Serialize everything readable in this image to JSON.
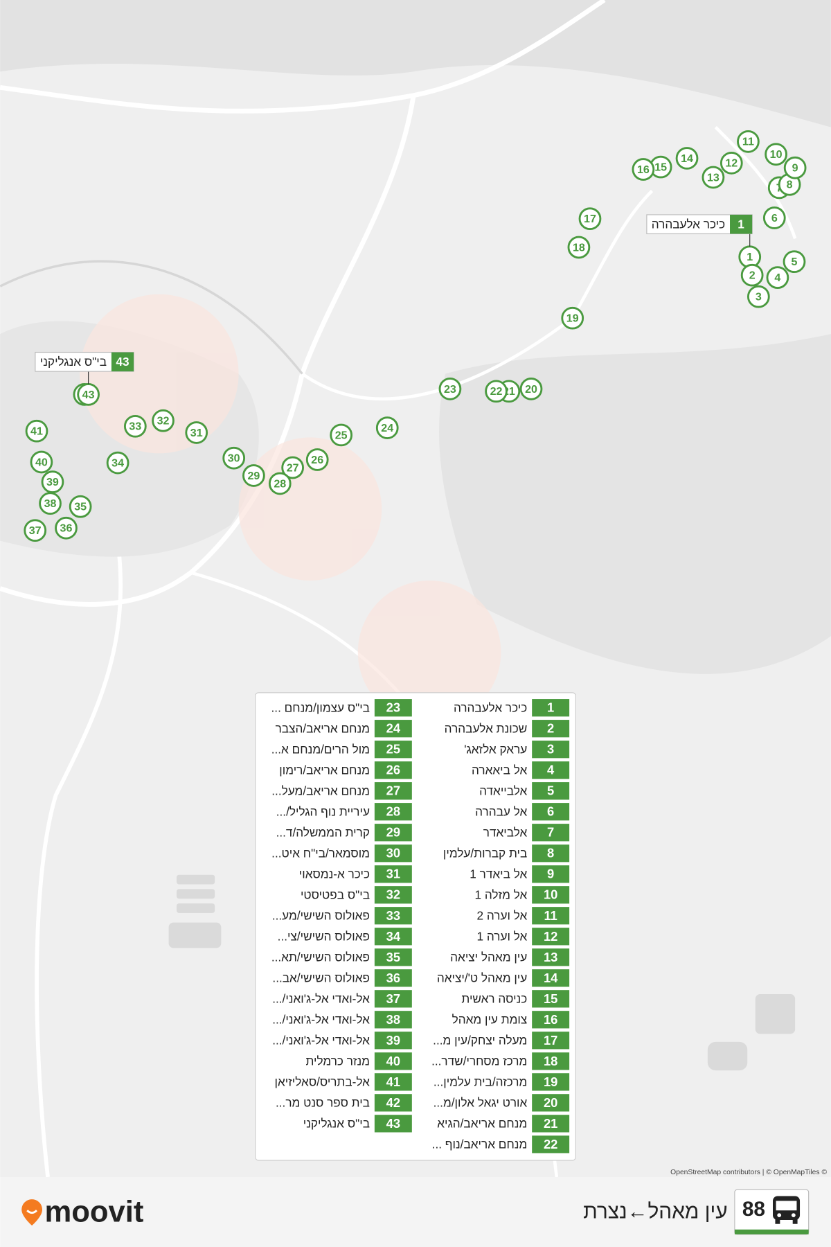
{
  "route": {
    "number": "88",
    "name": "עין מאהל←נצרת"
  },
  "brand": "moovit",
  "attribution": "OpenStreetMap contributors | © OpenMapTiles ©",
  "stops": [
    {
      "number": 1,
      "name": "כיכר אלעבהרה"
    },
    {
      "number": 2,
      "name": "שכונת אלעבהרה"
    },
    {
      "number": 3,
      "name": "עראק אלזאג'"
    },
    {
      "number": 4,
      "name": "אל ביאארה"
    },
    {
      "number": 5,
      "name": "אלבייאדה"
    },
    {
      "number": 6,
      "name": "אל עבהרה"
    },
    {
      "number": 7,
      "name": "אלביאדר"
    },
    {
      "number": 8,
      "name": "בית קברות/עלמין"
    },
    {
      "number": 9,
      "name": "אל ביאדר 1"
    },
    {
      "number": 10,
      "name": "אל מזלה 1"
    },
    {
      "number": 11,
      "name": "אל וערה 2"
    },
    {
      "number": 12,
      "name": "אל וערה 1"
    },
    {
      "number": 13,
      "name": "עין מאהל יציאה"
    },
    {
      "number": 14,
      "name": "עין מאהל ט'/יציאה"
    },
    {
      "number": 15,
      "name": "כניסה ראשית"
    },
    {
      "number": 16,
      "name": "צומת עין מאהל"
    },
    {
      "number": 17,
      "name": "מעלה יצחק/עין מ..."
    },
    {
      "number": 18,
      "name": "מרכז מסחרי/שדר..."
    },
    {
      "number": 19,
      "name": "מרכזה/בית עלמין..."
    },
    {
      "number": 20,
      "name": "אורט יגאל אלון/מ..."
    },
    {
      "number": 21,
      "name": "מנחם אריאב/הגיא"
    },
    {
      "number": 22,
      "name": "מנחם אריאב/נוף ..."
    },
    {
      "number": 23,
      "name": "בי\"ס עצמון/מנחם ..."
    },
    {
      "number": 24,
      "name": "מנחם אריאב/הצבר"
    },
    {
      "number": 25,
      "name": "מול הרים/מנחם א..."
    },
    {
      "number": 26,
      "name": "מנחם אריאב/רימון"
    },
    {
      "number": 27,
      "name": "מנחם אריאב/מעל..."
    },
    {
      "number": 28,
      "name": "עיריית נוף הגליל/..."
    },
    {
      "number": 29,
      "name": "קרית הממשלה/ד..."
    },
    {
      "number": 30,
      "name": "מוסמאר/בי\"ח איט..."
    },
    {
      "number": 31,
      "name": "כיכר א-נמסאוי"
    },
    {
      "number": 32,
      "name": "בי\"ס בפטיסטי"
    },
    {
      "number": 33,
      "name": "פאולוס השישי/מע..."
    },
    {
      "number": 34,
      "name": "פאולוס השישי/צי..."
    },
    {
      "number": 35,
      "name": "פאולוס השישי/תא..."
    },
    {
      "number": 36,
      "name": "פאולוס השישי/אב..."
    },
    {
      "number": 37,
      "name": "אל-ואדי אל-ג'ואני/..."
    },
    {
      "number": 38,
      "name": "אל-ואדי אל-ג'ואני/..."
    },
    {
      "number": 39,
      "name": "אל-ואדי אל-ג'ואני/..."
    },
    {
      "number": 40,
      "name": "מנזר כרמלית"
    },
    {
      "number": 41,
      "name": "אל-בתריס/סאליזיאן"
    },
    {
      "number": 42,
      "name": "בית ספר סנט מר..."
    },
    {
      "number": 43,
      "name": "בי\"ס אנגליקני"
    }
  ]
}
